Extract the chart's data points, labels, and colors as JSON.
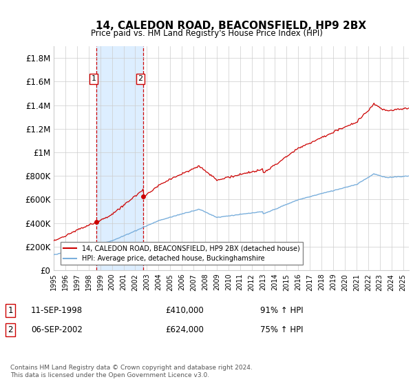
{
  "title": "14, CALEDON ROAD, BEACONSFIELD, HP9 2BX",
  "subtitle": "Price paid vs. HM Land Registry's House Price Index (HPI)",
  "ylabel_ticks": [
    "£0",
    "£200K",
    "£400K",
    "£600K",
    "£800K",
    "£1M",
    "£1.2M",
    "£1.4M",
    "£1.6M",
    "£1.8M"
  ],
  "ytick_values": [
    0,
    200000,
    400000,
    600000,
    800000,
    1000000,
    1200000,
    1400000,
    1600000,
    1800000
  ],
  "ylim": [
    0,
    1900000
  ],
  "xlim_start": 1995.0,
  "xlim_end": 2025.5,
  "sale1_year": 1998.69,
  "sale1_price": 410000,
  "sale1_label": "1",
  "sale1_date": "11-SEP-1998",
  "sale1_pct": "91% ↑ HPI",
  "sale2_year": 2002.69,
  "sale2_price": 624000,
  "sale2_label": "2",
  "sale2_date": "06-SEP-2002",
  "sale2_pct": "75% ↑ HPI",
  "property_line_color": "#cc0000",
  "hpi_line_color": "#7aafdc",
  "shade_color": "#ddeeff",
  "marker_border_color": "#cc0000",
  "grid_color": "#cccccc",
  "footnote": "Contains HM Land Registry data © Crown copyright and database right 2024.\nThis data is licensed under the Open Government Licence v3.0.",
  "legend1": "14, CALEDON ROAD, BEACONSFIELD, HP9 2BX (detached house)",
  "legend2": "HPI: Average price, detached house, Buckinghamshire"
}
